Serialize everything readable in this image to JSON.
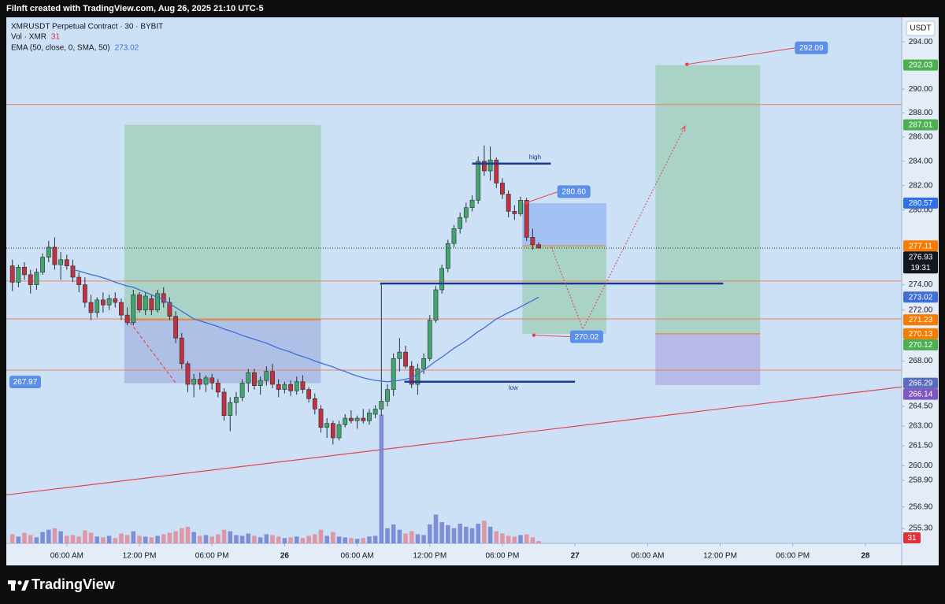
{
  "header": {
    "caption": "Filnft created with TradingView.com, Aug 26, 2025 21:10 UTC-5"
  },
  "footer": {
    "brand": "TradingView"
  },
  "chart_data": {
    "type": "candlestick",
    "title": "XMRUSDT Perpetual Contract · 30 · BYBIT",
    "currency": "USDT",
    "countdown": "19:31",
    "up_color": "#43a56b",
    "down_color": "#c0323f",
    "log_scale": true,
    "grid": false,
    "xlim": [
      -1,
      147
    ],
    "ylim": [
      254.2,
      296.1
    ],
    "xticks": [
      {
        "value": 9,
        "label": "06:00 AM"
      },
      {
        "value": 21,
        "label": "12:00 PM"
      },
      {
        "value": 33,
        "label": "06:00 PM"
      },
      {
        "value": 45,
        "label": "26"
      },
      {
        "value": 57,
        "label": "06:00 AM"
      },
      {
        "value": 69,
        "label": "12:00 PM"
      },
      {
        "value": 81,
        "label": "06:00 PM"
      },
      {
        "value": 93,
        "label": "27"
      },
      {
        "value": 105,
        "label": "06:00 AM"
      },
      {
        "value": 117,
        "label": "12:00 PM"
      },
      {
        "value": 129,
        "label": "06:00 PM"
      },
      {
        "value": 141,
        "label": "28"
      }
    ],
    "yticks": [
      {
        "value": 294,
        "label": "294.00"
      },
      {
        "value": 290,
        "label": "290.00"
      },
      {
        "value": 288,
        "label": "288.00"
      },
      {
        "value": 286,
        "label": "286.00"
      },
      {
        "value": 284,
        "label": "284.00"
      },
      {
        "value": 282,
        "label": "282.00"
      },
      {
        "value": 280,
        "label": "280.00"
      },
      {
        "value": 274,
        "label": "274.00"
      },
      {
        "value": 272,
        "label": "272.00"
      },
      {
        "value": 268,
        "label": "268.00"
      },
      {
        "value": 264.5,
        "label": "264.50"
      },
      {
        "value": 263,
        "label": "263.00"
      },
      {
        "value": 261.5,
        "label": "261.50"
      },
      {
        "value": 260,
        "label": "260.00"
      },
      {
        "value": 258.9,
        "label": "258.90"
      },
      {
        "value": 256.9,
        "label": "256.90"
      },
      {
        "value": 255.3,
        "label": "255.30"
      }
    ],
    "open": [
      275.5,
      274.2,
      275.4,
      274.8,
      274,
      275,
      276.2,
      277,
      275.6,
      276,
      275.5,
      274.6,
      274,
      272.6,
      271.8,
      272.8,
      272.4,
      272.9,
      272.6,
      271.6,
      271,
      273.2,
      272,
      272.9,
      272,
      273.3,
      272.6,
      271.5,
      269.8,
      267.8,
      266.2,
      266.6,
      266.2,
      266.7,
      266.3,
      265.6,
      263.8,
      264.8,
      265.2,
      266.3,
      267.1,
      266.1,
      266.5,
      267.2,
      266.2,
      265.8,
      266.2,
      265.7,
      266.4,
      265.8,
      265.1,
      264.3,
      262.9,
      263.2,
      262.1,
      263.1,
      263.6,
      263.4,
      263.6,
      263.4,
      263.9,
      264.3,
      264.9,
      265.8,
      268.2,
      268.7,
      267.6,
      266.2,
      267.4,
      268.2,
      271.2,
      273.6,
      275.3,
      277.3,
      278.5,
      279.4,
      280.2,
      280.8,
      284,
      283.2,
      284.1,
      282.2,
      281.3,
      279.9,
      279.7,
      280.8,
      277.8,
      277.2
    ],
    "high": [
      276,
      275.6,
      275.8,
      275.2,
      275.3,
      276.5,
      277.5,
      277.8,
      276.6,
      276.4,
      276,
      275,
      274.6,
      273.2,
      273,
      273.4,
      273.2,
      273.4,
      272.9,
      272.2,
      273.6,
      273.4,
      273.4,
      273.2,
      273.6,
      273.8,
      273,
      271.9,
      270.2,
      268,
      267,
      267.1,
      266.9,
      267,
      266.6,
      265.9,
      265.2,
      265.6,
      266.6,
      267.4,
      267.4,
      266.8,
      267.6,
      267.8,
      266.6,
      266.4,
      266.5,
      266.8,
      266.9,
      266,
      265.5,
      264.6,
      263.6,
      263.4,
      263.4,
      263.9,
      264.2,
      263.8,
      264.3,
      264.3,
      264.6,
      274.1,
      266.2,
      268.6,
      269.8,
      269.2,
      268,
      267.8,
      268.6,
      271.6,
      273.9,
      275.6,
      277.6,
      278.8,
      279.8,
      280.6,
      281.2,
      284.4,
      285.3,
      285.2,
      284.3,
      282.6,
      281.6,
      280.4,
      281.1,
      281,
      278.5,
      277.4
    ],
    "low": [
      273.5,
      273.8,
      274.4,
      273.3,
      273.6,
      274.8,
      275.8,
      275.2,
      274.4,
      275.2,
      274.2,
      273.4,
      272.2,
      271.2,
      271.4,
      271.8,
      272,
      272.2,
      271.2,
      270.8,
      270.8,
      271.8,
      271.6,
      271.6,
      271.8,
      272.2,
      271.2,
      269.4,
      267.4,
      265.6,
      265.2,
      265.8,
      265.6,
      265.8,
      265.2,
      263.4,
      262.6,
      263.8,
      264.9,
      265.6,
      265.8,
      265.4,
      266.1,
      265.9,
      265.2,
      265.5,
      265.3,
      265.4,
      265.5,
      264.8,
      263.9,
      262.5,
      262.1,
      261.6,
      261.9,
      262.9,
      263.2,
      262.8,
      263.2,
      263.1,
      263.6,
      263.8,
      264.5,
      265.3,
      267.2,
      267.4,
      265.9,
      265.4,
      267,
      268,
      271,
      273.3,
      275,
      277,
      278.1,
      279,
      279.9,
      280.5,
      282.8,
      282.4,
      281.8,
      280.9,
      279.4,
      279.2,
      279.5,
      277.5,
      276.8,
      276.9
    ],
    "close": [
      274.2,
      275.4,
      274.8,
      274,
      275,
      276.2,
      277,
      275.6,
      276,
      275.5,
      274.6,
      274,
      272.6,
      271.8,
      272.8,
      272.4,
      272.9,
      272.6,
      271.6,
      271,
      273.2,
      272,
      273.1,
      272,
      273.3,
      272.6,
      271.5,
      269.8,
      267.8,
      266.2,
      266.6,
      266.2,
      266.7,
      266.3,
      265.6,
      263.8,
      264.8,
      265.2,
      266.3,
      267.1,
      266.1,
      266.5,
      267.2,
      266.2,
      265.8,
      266.2,
      265.7,
      266.4,
      265.8,
      265.1,
      264.3,
      262.9,
      263.2,
      262.1,
      263.1,
      263.6,
      263.4,
      263.6,
      263.4,
      264,
      264.3,
      264.9,
      265.8,
      268.2,
      268.7,
      267.6,
      266.2,
      267.4,
      268.2,
      271.2,
      273.6,
      275.3,
      277.3,
      278.5,
      279.4,
      280.2,
      280.8,
      284,
      283.2,
      284.1,
      282.2,
      281.3,
      279.9,
      279.7,
      280.8,
      277.8,
      277.2,
      276.93
    ],
    "volume": {
      "name": "Vol · XMR",
      "up_color": "#6f7fd0",
      "down_color": "#e08a98",
      "label_color": "#e0313b",
      "ylim": [
        0,
        2080
      ],
      "values": [
        120,
        90,
        140,
        110,
        80,
        150,
        180,
        200,
        160,
        100,
        110,
        90,
        170,
        140,
        90,
        80,
        100,
        70,
        130,
        110,
        160,
        100,
        90,
        80,
        100,
        120,
        140,
        160,
        200,
        220,
        150,
        100,
        110,
        90,
        120,
        180,
        160,
        110,
        100,
        130,
        100,
        80,
        120,
        110,
        90,
        70,
        80,
        90,
        70,
        100,
        120,
        180,
        100,
        150,
        90,
        80,
        70,
        60,
        70,
        90,
        100,
        1700,
        200,
        250,
        180,
        130,
        160,
        120,
        110,
        250,
        380,
        280,
        240,
        200,
        260,
        220,
        200,
        260,
        300,
        220,
        160,
        130,
        100,
        90,
        110,
        120,
        80,
        31
      ]
    },
    "ema": {
      "name": "EMA (50, close, 0, SMA, 50)",
      "color": "#3f6fd6",
      "values": [
        null,
        null,
        null,
        null,
        null,
        null,
        null,
        null,
        null,
        null,
        275.2,
        275.1,
        274.95,
        274.8,
        274.7,
        274.55,
        274.4,
        274.2,
        274.05,
        273.9,
        273.8,
        273.6,
        273.4,
        273.2,
        273.0,
        272.8,
        272.5,
        272.2,
        271.9,
        271.6,
        271.3,
        271.15,
        271.0,
        270.85,
        270.7,
        270.5,
        270.35,
        270.2,
        270.0,
        269.85,
        269.7,
        269.55,
        269.4,
        269.2,
        269.0,
        268.85,
        268.7,
        268.5,
        268.35,
        268.2,
        268.0,
        267.85,
        267.7,
        267.55,
        267.35,
        267.2,
        267.0,
        266.85,
        266.7,
        266.6,
        266.5,
        266.45,
        266.4,
        266.45,
        266.5,
        266.6,
        266.7,
        267.0,
        267.3,
        267.65,
        268.0,
        268.3,
        268.65,
        269.0,
        269.3,
        269.6,
        269.95,
        270.3,
        270.6,
        270.95,
        271.3,
        271.55,
        271.8,
        272.0,
        272.25,
        272.5,
        272.75,
        273.02
      ]
    },
    "positions": [
      {
        "start": 18.5,
        "end": 51,
        "entry": 271.23,
        "target": 287.01,
        "stop": 266.29,
        "entry_color": "#f57c00",
        "target_color": "#4caf50",
        "stop_color": "#5c6bc0"
      },
      {
        "start": 84.3,
        "end": 98.2,
        "entry": 277.11,
        "target": 270.12,
        "stop": 280.57,
        "entry_color": "#f57c00",
        "target_color": "#4caf50",
        "stop_color": "#2f6fe8"
      },
      {
        "start": 106.3,
        "end": 123.6,
        "entry": 270.13,
        "target": 292.03,
        "stop": 266.14,
        "entry_color": "#f57c00",
        "target_color": "#4caf50",
        "stop_color": "#7e57c2"
      }
    ],
    "hline_color": "#e8825c",
    "hlines": [
      288.7,
      274.3,
      271.3,
      267.3
    ],
    "segment_color": "#1a3b8f",
    "segments": [
      {
        "start": 76,
        "end": 89,
        "price": 283.8,
        "text": "high"
      },
      {
        "start": 60.8,
        "end": 117.5,
        "price": 274.1
      },
      {
        "start": 64.8,
        "end": 93,
        "price": 266.4,
        "text": "low"
      }
    ],
    "lines": [
      {
        "from": [
          -1,
          257.8
        ],
        "to": [
          147,
          266.0
        ],
        "color": "#e0474c",
        "dashed": false
      },
      {
        "from": [
          19.5,
          271.0
        ],
        "to": [
          27,
          266.3
        ],
        "color": "#e0474c",
        "dashed": true
      }
    ],
    "projection": {
      "color": "#e0474c",
      "x": [
        89.1,
        94.3,
        111.2
      ],
      "prices": [
        277.0,
        270.5,
        286.9
      ]
    },
    "callout_color": "#5b8fe8",
    "callouts": [
      {
        "x": 85,
        "price": 280.6,
        "label": "280.60"
      },
      {
        "x": 111.5,
        "price": 292.09
      },
      {
        "x": 86.2,
        "price": 270.02
      }
    ],
    "left_label": 267.97
  }
}
